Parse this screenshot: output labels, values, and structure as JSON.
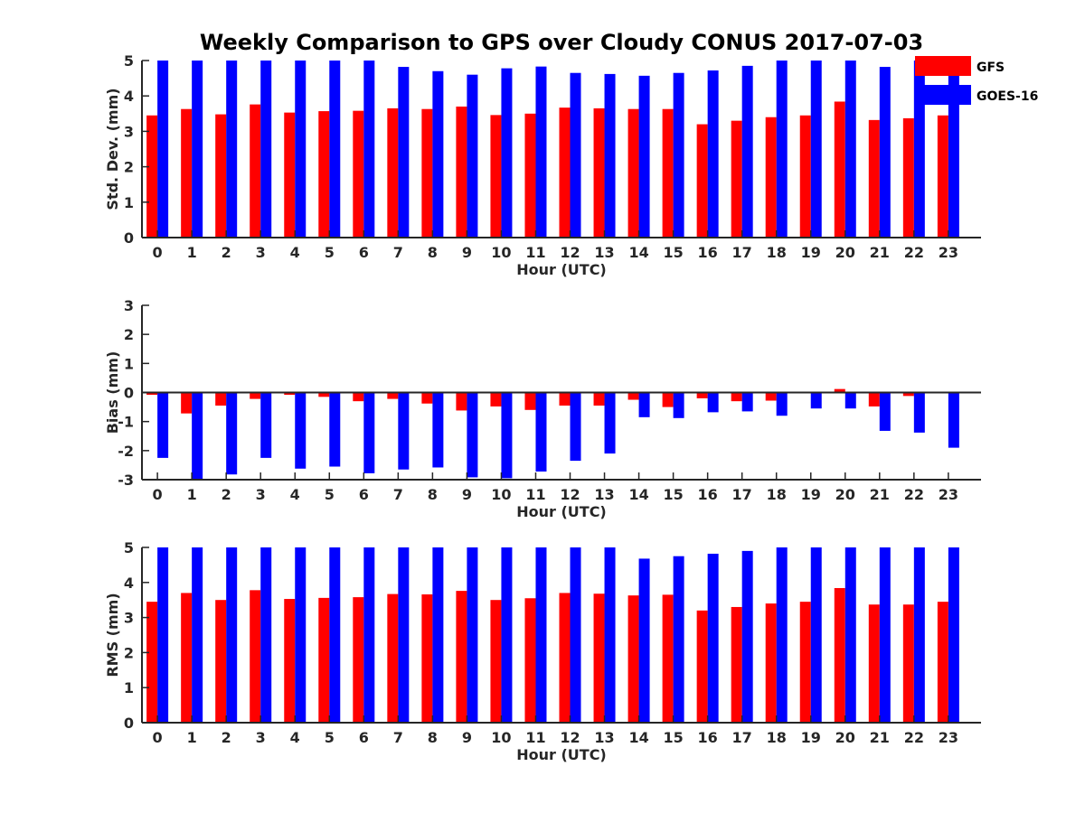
{
  "figure": {
    "title": "Weekly Comparison to GPS over Cloudy CONUS 2017-07-03"
  },
  "legend": {
    "placement": "top-right",
    "items": [
      {
        "label": "GFS",
        "color": "#ff0000"
      },
      {
        "label": "GOES-16",
        "color": "#0000ff"
      }
    ]
  },
  "chart_data": [
    {
      "type": "bar",
      "xlabel": "Hour (UTC)",
      "ylabel": "Std. Dev. (mm)",
      "ylim": [
        0,
        5
      ],
      "yticks": [
        0,
        1,
        2,
        3,
        4,
        5
      ],
      "grid": false,
      "categories": [
        "0",
        "1",
        "2",
        "3",
        "4",
        "5",
        "6",
        "7",
        "8",
        "9",
        "10",
        "11",
        "12",
        "13",
        "14",
        "15",
        "16",
        "17",
        "18",
        "19",
        "20",
        "21",
        "22",
        "23"
      ],
      "series": [
        {
          "name": "GFS",
          "color": "#ff0000",
          "values": [
            3.45,
            3.63,
            3.48,
            3.76,
            3.53,
            3.57,
            3.58,
            3.65,
            3.63,
            3.7,
            3.46,
            3.5,
            3.67,
            3.65,
            3.63,
            3.63,
            3.2,
            3.3,
            3.4,
            3.45,
            3.84,
            3.32,
            3.37,
            3.45
          ]
        },
        {
          "name": "GOES-16",
          "color": "#0000ff",
          "values": [
            5.0,
            5.0,
            5.0,
            5.0,
            5.0,
            5.0,
            5.0,
            4.82,
            4.7,
            4.6,
            4.78,
            4.83,
            4.65,
            4.62,
            4.57,
            4.65,
            4.72,
            4.85,
            5.0,
            5.0,
            5.0,
            4.82,
            5.0,
            4.6
          ]
        }
      ]
    },
    {
      "type": "bar",
      "xlabel": "Hour (UTC)",
      "ylabel": "Bias (mm)",
      "ylim": [
        -3,
        3
      ],
      "yticks": [
        -3,
        -2,
        -1,
        0,
        1,
        2,
        3
      ],
      "grid": false,
      "zero_line": true,
      "categories": [
        "0",
        "1",
        "2",
        "3",
        "4",
        "5",
        "6",
        "7",
        "8",
        "9",
        "10",
        "11",
        "12",
        "13",
        "14",
        "15",
        "16",
        "17",
        "18",
        "19",
        "20",
        "21",
        "22",
        "23"
      ],
      "series": [
        {
          "name": "GFS",
          "color": "#ff0000",
          "values": [
            -0.08,
            -0.72,
            -0.45,
            -0.22,
            -0.08,
            -0.15,
            -0.3,
            -0.22,
            -0.38,
            -0.62,
            -0.48,
            -0.6,
            -0.45,
            -0.45,
            -0.25,
            -0.5,
            -0.2,
            -0.3,
            -0.28,
            -0.03,
            0.12,
            -0.48,
            -0.12,
            0.02
          ]
        },
        {
          "name": "GOES-16",
          "color": "#0000ff",
          "values": [
            -2.25,
            -3.0,
            -2.82,
            -2.25,
            -2.62,
            -2.55,
            -2.78,
            -2.65,
            -2.58,
            -2.92,
            -2.95,
            -2.72,
            -2.35,
            -2.1,
            -0.85,
            -0.88,
            -0.68,
            -0.65,
            -0.8,
            -0.55,
            -0.55,
            -1.32,
            -1.38,
            -1.9
          ]
        }
      ]
    },
    {
      "type": "bar",
      "xlabel": "Hour (UTC)",
      "ylabel": "RMS (mm)",
      "ylim": [
        0,
        5
      ],
      "yticks": [
        0,
        1,
        2,
        3,
        4,
        5
      ],
      "grid": false,
      "categories": [
        "0",
        "1",
        "2",
        "3",
        "4",
        "5",
        "6",
        "7",
        "8",
        "9",
        "10",
        "11",
        "12",
        "13",
        "14",
        "15",
        "16",
        "17",
        "18",
        "19",
        "20",
        "21",
        "22",
        "23"
      ],
      "series": [
        {
          "name": "GFS",
          "color": "#ff0000",
          "values": [
            3.45,
            3.7,
            3.5,
            3.78,
            3.53,
            3.56,
            3.58,
            3.67,
            3.66,
            3.76,
            3.5,
            3.55,
            3.7,
            3.68,
            3.63,
            3.65,
            3.2,
            3.3,
            3.4,
            3.45,
            3.84,
            3.37,
            3.37,
            3.45
          ]
        },
        {
          "name": "GOES-16",
          "color": "#0000ff",
          "values": [
            5.0,
            5.0,
            5.0,
            5.0,
            5.0,
            5.0,
            5.0,
            5.0,
            5.0,
            5.0,
            5.0,
            5.0,
            5.0,
            5.0,
            4.68,
            4.75,
            4.82,
            4.9,
            5.0,
            5.0,
            5.0,
            5.0,
            5.0,
            5.0
          ]
        }
      ]
    }
  ]
}
